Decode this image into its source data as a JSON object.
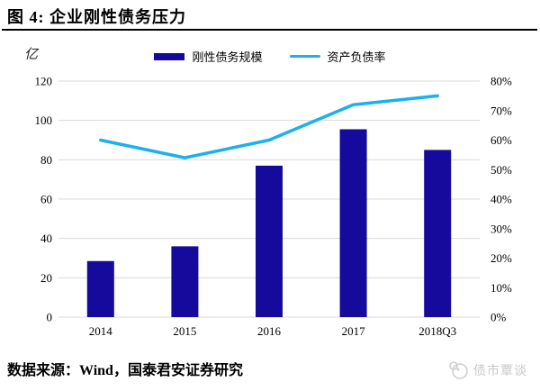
{
  "title": "图 4: 企业刚性债务压力",
  "unit_label": "亿",
  "source": "数据来源：Wind，国泰君安证券研究",
  "watermark": "债市覃谈",
  "colors": {
    "bar": "#150A9C",
    "line": "#1CB0EC",
    "grid": "#D9D9D9",
    "watermark": "#CCCCCC",
    "rule": "#000000"
  },
  "chart_data": {
    "type": "bar",
    "note": "combo chart: bars on left axis, line on right axis",
    "title": "企业刚性债务压力",
    "categories": [
      "2014",
      "2015",
      "2016",
      "2017",
      "2018Q3"
    ],
    "series": [
      {
        "name": "刚性债务规模",
        "type": "bar",
        "axis": "left",
        "values": [
          28.5,
          36,
          77,
          95.5,
          85
        ]
      },
      {
        "name": "资产负债率",
        "type": "line",
        "axis": "right",
        "values": [
          60,
          54,
          60,
          72,
          75
        ]
      }
    ],
    "left_axis": {
      "unit": "亿",
      "min": 0,
      "max": 120,
      "step": 20,
      "ticks": [
        "0",
        "20",
        "40",
        "60",
        "80",
        "100",
        "120"
      ]
    },
    "right_axis": {
      "unit": "%",
      "min": 0,
      "max": 80,
      "step": 10,
      "ticks": [
        "0%",
        "10%",
        "20%",
        "30%",
        "40%",
        "50%",
        "60%",
        "70%",
        "80%"
      ]
    },
    "grid": true,
    "legend_position": "top"
  }
}
